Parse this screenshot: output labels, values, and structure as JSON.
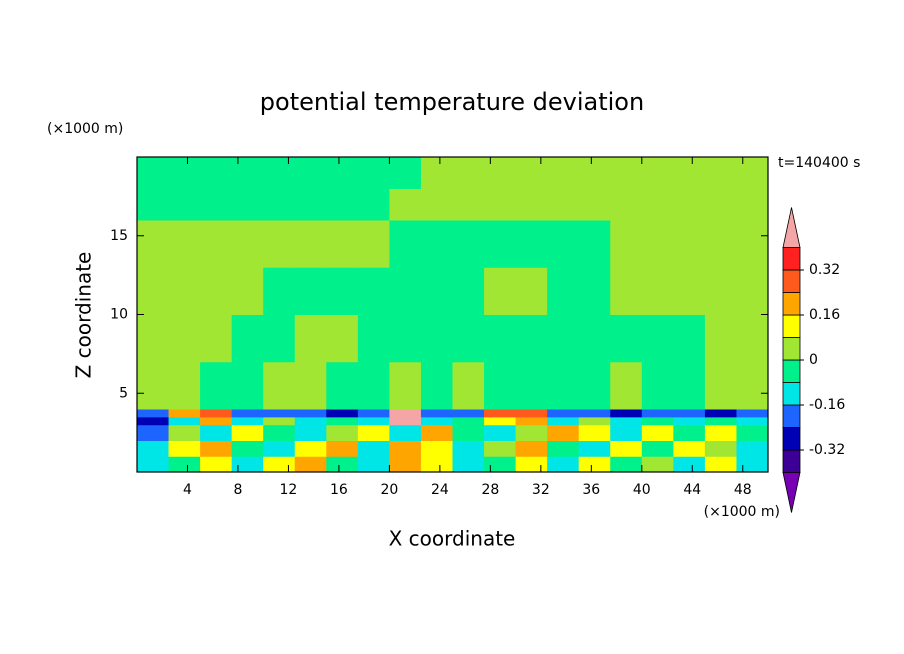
{
  "chart_data": {
    "type": "contourf",
    "title": "potential temperature deviation",
    "xlabel": "X coordinate",
    "ylabel": "Z coordinate",
    "x_unit_label": "(×1000 m)",
    "y_unit_label": "(×1000 m)",
    "annotation": "t=140400 s",
    "xlim": [
      0,
      50
    ],
    "ylim": [
      0,
      20
    ],
    "xticks": [
      4,
      8,
      12,
      16,
      20,
      24,
      28,
      32,
      36,
      40,
      44,
      48
    ],
    "yticks": [
      5,
      10,
      15
    ],
    "x_edges": [
      0,
      2.5,
      5,
      7.5,
      10,
      12.5,
      15,
      17.5,
      20,
      22.5,
      25,
      27.5,
      30,
      32.5,
      35,
      37.5,
      40,
      42.5,
      45,
      47.5,
      50
    ],
    "y_edges": [
      0,
      1,
      2,
      3,
      3.5,
      4,
      7,
      10,
      13,
      16,
      18,
      20
    ],
    "values": [
      [
        -0.12,
        -0.04,
        0.12,
        -0.12,
        0.12,
        0.2,
        -0.04,
        -0.12,
        0.2,
        0.12,
        -0.12,
        -0.04,
        0.12,
        -0.12,
        0.12,
        -0.04,
        0.04,
        -0.12,
        0.12,
        -0.12
      ],
      [
        -0.12,
        0.12,
        0.2,
        -0.04,
        -0.12,
        0.12,
        0.2,
        -0.12,
        0.2,
        0.12,
        -0.12,
        0.04,
        0.2,
        -0.04,
        -0.12,
        0.12,
        -0.04,
        0.12,
        0.04,
        -0.12
      ],
      [
        -0.2,
        0.04,
        -0.12,
        0.12,
        -0.04,
        -0.12,
        0.04,
        0.12,
        -0.12,
        0.2,
        -0.04,
        -0.12,
        0.04,
        0.2,
        0.12,
        -0.12,
        0.12,
        -0.04,
        0.12,
        -0.04
      ],
      [
        -0.28,
        -0.12,
        0.2,
        -0.12,
        0.04,
        -0.12,
        -0.04,
        -0.12,
        0.45,
        -0.12,
        -0.04,
        0.12,
        0.2,
        -0.12,
        0.04,
        -0.12,
        -0.04,
        -0.12,
        -0.04,
        -0.12
      ],
      [
        -0.2,
        0.2,
        0.28,
        -0.2,
        -0.2,
        -0.2,
        -0.28,
        -0.2,
        0.45,
        -0.2,
        -0.2,
        0.28,
        0.28,
        -0.2,
        -0.2,
        -0.28,
        -0.2,
        -0.2,
        -0.28,
        -0.2
      ],
      [
        0.04,
        0.04,
        -0.04,
        -0.04,
        0.04,
        0.04,
        -0.04,
        -0.04,
        0.04,
        -0.04,
        0.04,
        -0.04,
        -0.04,
        -0.04,
        -0.04,
        0.04,
        -0.04,
        -0.04,
        0.04,
        0.04
      ],
      [
        0.04,
        0.04,
        0.04,
        -0.04,
        -0.04,
        0.04,
        0.04,
        -0.04,
        -0.04,
        -0.04,
        -0.04,
        -0.04,
        -0.04,
        -0.04,
        -0.04,
        -0.04,
        -0.04,
        -0.04,
        0.04,
        0.04
      ],
      [
        0.04,
        0.04,
        0.04,
        0.04,
        -0.04,
        -0.04,
        -0.04,
        -0.04,
        -0.04,
        -0.04,
        -0.04,
        0.04,
        0.04,
        -0.04,
        -0.04,
        0.04,
        0.04,
        0.04,
        0.04,
        0.04
      ],
      [
        0.04,
        0.04,
        0.04,
        0.04,
        0.04,
        0.04,
        0.04,
        0.04,
        -0.04,
        -0.04,
        -0.04,
        -0.04,
        -0.04,
        -0.04,
        -0.04,
        0.04,
        0.04,
        0.04,
        0.04,
        0.04
      ],
      [
        -0.04,
        -0.04,
        -0.04,
        -0.04,
        -0.04,
        -0.04,
        -0.04,
        -0.04,
        0.04,
        0.04,
        0.04,
        0.04,
        0.04,
        0.04,
        0.04,
        0.04,
        0.04,
        0.04,
        0.04,
        0.04
      ],
      [
        -0.04,
        -0.04,
        -0.04,
        -0.04,
        -0.04,
        -0.04,
        -0.04,
        -0.04,
        -0.04,
        0.04,
        0.04,
        0.04,
        0.04,
        0.04,
        0.04,
        0.04,
        0.04,
        0.04,
        0.04,
        0.04
      ]
    ],
    "levels": [
      -0.4,
      -0.32,
      -0.24,
      -0.16,
      -0.08,
      0,
      0.08,
      0.16,
      0.24,
      0.32,
      0.4
    ],
    "colors": [
      "#7800b4",
      "#3c0096",
      "#0000b4",
      "#1e64ff",
      "#00e6e6",
      "#00f08c",
      "#a0e632",
      "#ffff00",
      "#ffa500",
      "#ff5a1e",
      "#ff2020",
      "#f4a6a6"
    ],
    "cbar_ticks": [
      -0.32,
      -0.16,
      0,
      0.16,
      0.32
    ]
  }
}
